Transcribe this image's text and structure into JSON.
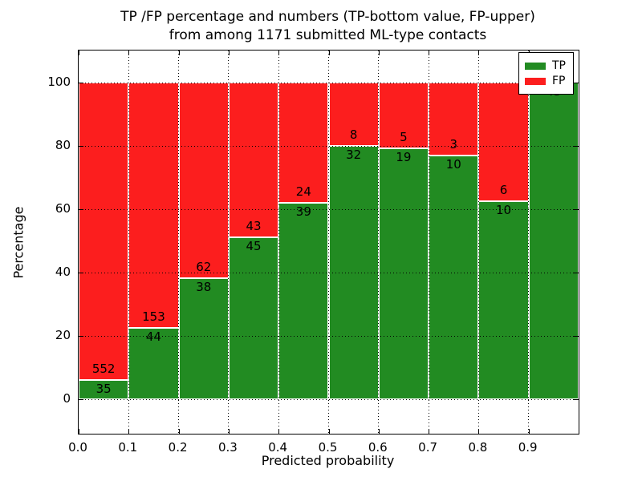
{
  "figure": {
    "title_line1": "TP /FP percentage and numbers (TP-bottom value, FP-upper)",
    "title_line2": "from among 1171 submitted ML-type contacts"
  },
  "chart_data": {
    "type": "bar",
    "subtype": "stacked-percentage-histogram",
    "title": "TP /FP percentage and numbers (TP-bottom value, FP-upper) from among 1171 submitted ML-type contacts",
    "xlabel": "Predicted probability",
    "ylabel": "Percentage",
    "total_contacts": 1171,
    "bin_width": 0.1,
    "categories": [
      "0.0-0.1",
      "0.1-0.2",
      "0.2-0.3",
      "0.3-0.4",
      "0.4-0.5",
      "0.5-0.6",
      "0.6-0.7",
      "0.7-0.8",
      "0.8-0.9",
      "0.9-1.0"
    ],
    "series": [
      {
        "name": "TP",
        "color": "#228b22",
        "values": [
          35,
          44,
          38,
          45,
          39,
          32,
          19,
          10,
          10,
          43
        ]
      },
      {
        "name": "FP",
        "color": "#fc1e1e",
        "values": [
          552,
          153,
          62,
          43,
          24,
          8,
          5,
          3,
          6,
          0
        ]
      }
    ],
    "tp_percent_of_bin": [
      5.96,
      22.34,
      38.0,
      51.14,
      61.9,
      80.0,
      79.17,
      76.92,
      62.5,
      100.0
    ],
    "bars_normalized_to": 100,
    "yticks": [
      0,
      20,
      40,
      60,
      80,
      100
    ],
    "xticks": [
      "0.0",
      "0.1",
      "0.2",
      "0.3",
      "0.4",
      "0.5",
      "0.6",
      "0.7",
      "0.8",
      "0.9"
    ],
    "ylim": [
      -11,
      110
    ],
    "xlim": [
      0.0,
      1.0
    ],
    "grid": "dotted-black",
    "legend_position": "upper-right"
  },
  "legend": {
    "items": [
      {
        "label": "TP",
        "color": "#228b22"
      },
      {
        "label": "FP",
        "color": "#fc1e1e"
      }
    ]
  }
}
